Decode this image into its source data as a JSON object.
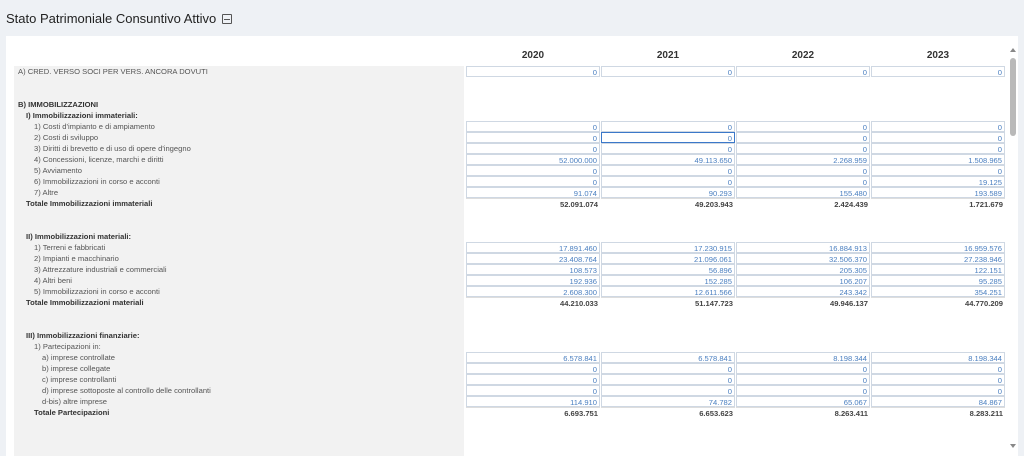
{
  "header": {
    "title": "Stato Patrimoniale Consuntivo Attivo",
    "icon": "book-icon"
  },
  "table": {
    "years": [
      "2020",
      "2021",
      "2022",
      "2023"
    ],
    "rows": [
      {
        "label": "A) CRED. VERSO SOCI PER VERS. ANCORA DOVUTI",
        "indent": 0,
        "type": "data",
        "values": [
          "0",
          "0",
          "0",
          "0"
        ]
      },
      {
        "label": "",
        "indent": 0,
        "type": "blank"
      },
      {
        "label": "",
        "indent": 0,
        "type": "blank"
      },
      {
        "label": "B) IMMOBILIZZAZIONI",
        "indent": 0,
        "type": "head"
      },
      {
        "label": "I) Immobilizzazioni immateriali:",
        "indent": 1,
        "type": "head"
      },
      {
        "label": "1) Costi d'impianto e di ampiamento",
        "indent": 2,
        "type": "data",
        "values": [
          "0",
          "0",
          "0",
          "0"
        ]
      },
      {
        "label": "2) Costi di sviluppo",
        "indent": 2,
        "type": "data",
        "values": [
          "0",
          "0",
          "0",
          "0"
        ],
        "selected": 1
      },
      {
        "label": "3) Diritti di brevetto e di uso di opere d'ingegno",
        "indent": 2,
        "type": "data",
        "values": [
          "0",
          "0",
          "0",
          "0"
        ]
      },
      {
        "label": "4) Concessioni, licenze, marchi e diritti",
        "indent": 2,
        "type": "data",
        "values": [
          "52.000.000",
          "49.113.650",
          "2.268.959",
          "1.508.965"
        ]
      },
      {
        "label": "5) Avviamento",
        "indent": 2,
        "type": "data",
        "values": [
          "0",
          "0",
          "0",
          "0"
        ]
      },
      {
        "label": "6) Immobilizzazioni in corso e acconti",
        "indent": 2,
        "type": "data",
        "values": [
          "0",
          "0",
          "0",
          "19.125"
        ]
      },
      {
        "label": "7) Altre",
        "indent": 2,
        "type": "data",
        "values": [
          "91.074",
          "90.293",
          "155.480",
          "193.589"
        ]
      },
      {
        "label": "Totale Immobilizzazioni immateriali",
        "indent": 1,
        "type": "total",
        "values": [
          "52.091.074",
          "49.203.943",
          "2.424.439",
          "1.721.679"
        ]
      },
      {
        "label": "",
        "indent": 0,
        "type": "blank"
      },
      {
        "label": "",
        "indent": 0,
        "type": "blank"
      },
      {
        "label": "II) Immobilizzazioni materiali:",
        "indent": 1,
        "type": "head"
      },
      {
        "label": "1) Terreni e fabbricati",
        "indent": 2,
        "type": "data",
        "values": [
          "17.891.460",
          "17.230.915",
          "16.884.913",
          "16.959.576"
        ]
      },
      {
        "label": "2) Impianti e macchinario",
        "indent": 2,
        "type": "data",
        "values": [
          "23.408.764",
          "21.096.061",
          "32.506.370",
          "27.238.946"
        ]
      },
      {
        "label": "3) Attrezzature industriali e commerciali",
        "indent": 2,
        "type": "data",
        "values": [
          "108.573",
          "56.896",
          "205.305",
          "122.151"
        ]
      },
      {
        "label": "4) Altri beni",
        "indent": 2,
        "type": "data",
        "values": [
          "192.936",
          "152.285",
          "106.207",
          "95.285"
        ]
      },
      {
        "label": "5) Immobilizzazioni in corso e acconti",
        "indent": 2,
        "type": "data",
        "values": [
          "2.608.300",
          "12.611.566",
          "243.342",
          "354.251"
        ]
      },
      {
        "label": "Totale Immobilizzazioni materiali",
        "indent": 1,
        "type": "total",
        "values": [
          "44.210.033",
          "51.147.723",
          "49.946.137",
          "44.770.209"
        ]
      },
      {
        "label": "",
        "indent": 0,
        "type": "blank"
      },
      {
        "label": "",
        "indent": 0,
        "type": "blank"
      },
      {
        "label": "III) Immobilizzazioni finanziarie:",
        "indent": 1,
        "type": "head"
      },
      {
        "label": "1) Partecipazioni in:",
        "indent": 2,
        "type": "head"
      },
      {
        "label": "a) imprese controllate",
        "indent": 3,
        "type": "data",
        "values": [
          "6.578.841",
          "6.578.841",
          "8.198.344",
          "8.198.344"
        ]
      },
      {
        "label": "b) imprese collegate",
        "indent": 3,
        "type": "data",
        "values": [
          "0",
          "0",
          "0",
          "0"
        ]
      },
      {
        "label": "c) imprese controllanti",
        "indent": 3,
        "type": "data",
        "values": [
          "0",
          "0",
          "0",
          "0"
        ]
      },
      {
        "label": "d) imprese sottoposte al controllo delle controllanti",
        "indent": 3,
        "type": "data",
        "values": [
          "0",
          "0",
          "0",
          "0"
        ]
      },
      {
        "label": "d-bis) altre imprese",
        "indent": 3,
        "type": "data",
        "values": [
          "114.910",
          "74.782",
          "65.067",
          "84.867"
        ]
      },
      {
        "label": "Totale Partecipazioni",
        "indent": 2,
        "type": "total",
        "values": [
          "6.693.751",
          "6.653.623",
          "8.263.411",
          "8.283.211"
        ]
      }
    ]
  }
}
